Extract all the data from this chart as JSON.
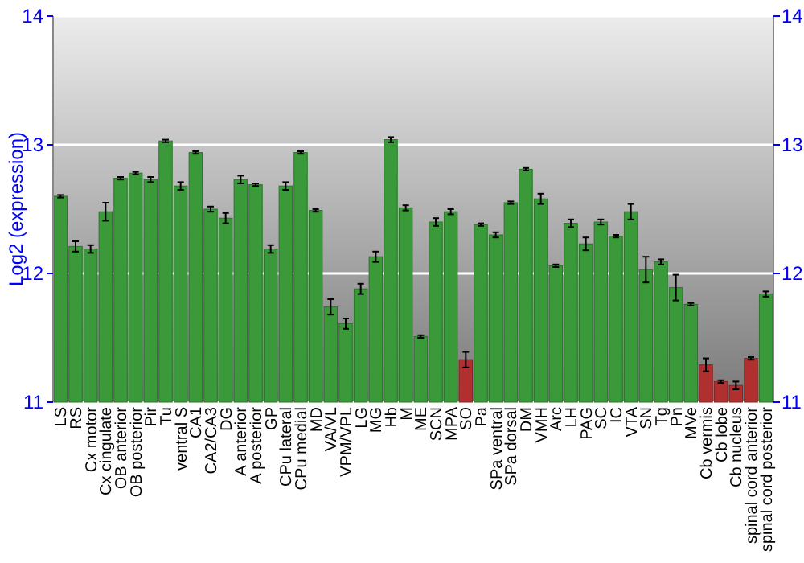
{
  "chart_data": {
    "type": "bar",
    "ylabel": "Log2 (expression)",
    "categories": [
      "LS",
      "RS",
      "Cx motor",
      "Cx cingulate",
      "OB anterior",
      "OB posterior",
      "Pir",
      "Tu",
      "ventral S",
      "CA1",
      "CA2/CA3",
      "DG",
      "A anterior",
      "A posterior",
      "GP",
      "CPu lateral",
      "CPu medial",
      "MD",
      "VA/VL",
      "VPM/VPL",
      "LG",
      "MG",
      "Hb",
      "M",
      "ME",
      "SCN",
      "MPA",
      "SO",
      "Pa",
      "SPa ventral",
      "SPa dorsal",
      "DM",
      "VMH",
      "Arc",
      "LH",
      "PAG",
      "SC",
      "IC",
      "VTA",
      "SN",
      "Tg",
      "Pn",
      "MVe",
      "Cb vermis",
      "Cb lobe",
      "Cb nucleus",
      "spinal cord anterior",
      "spinal cord posterior"
    ],
    "values": [
      12.6,
      12.21,
      12.19,
      12.48,
      12.74,
      12.78,
      12.73,
      13.03,
      12.68,
      12.94,
      12.5,
      12.43,
      12.73,
      12.69,
      12.19,
      12.68,
      12.94,
      12.49,
      11.74,
      11.61,
      11.88,
      12.13,
      13.04,
      12.51,
      11.51,
      12.4,
      12.48,
      11.33,
      12.38,
      12.3,
      12.55,
      12.81,
      12.58,
      12.06,
      12.39,
      12.23,
      12.4,
      12.29,
      12.48,
      12.03,
      12.09,
      11.89,
      11.76,
      11.29,
      11.16,
      11.13,
      11.34,
      11.84
    ],
    "errors": [
      0.01,
      0.04,
      0.03,
      0.07,
      0.01,
      0.01,
      0.02,
      0.01,
      0.03,
      0.01,
      0.02,
      0.04,
      0.03,
      0.01,
      0.03,
      0.03,
      0.01,
      0.01,
      0.06,
      0.04,
      0.04,
      0.04,
      0.02,
      0.02,
      0.01,
      0.03,
      0.02,
      0.06,
      0.01,
      0.02,
      0.01,
      0.01,
      0.04,
      0.01,
      0.03,
      0.05,
      0.02,
      0.01,
      0.06,
      0.1,
      0.02,
      0.1,
      0.01,
      0.05,
      0.01,
      0.03,
      0.01,
      0.02
    ],
    "colors": [
      "#3a9a3a",
      "#3a9a3a",
      "#3a9a3a",
      "#3a9a3a",
      "#3a9a3a",
      "#3a9a3a",
      "#3a9a3a",
      "#3a9a3a",
      "#3a9a3a",
      "#3a9a3a",
      "#3a9a3a",
      "#3a9a3a",
      "#3a9a3a",
      "#3a9a3a",
      "#3a9a3a",
      "#3a9a3a",
      "#3a9a3a",
      "#3a9a3a",
      "#3a9a3a",
      "#3a9a3a",
      "#3a9a3a",
      "#3a9a3a",
      "#3a9a3a",
      "#3a9a3a",
      "#3a9a3a",
      "#3a9a3a",
      "#3a9a3a",
      "#b03030",
      "#3a9a3a",
      "#3a9a3a",
      "#3a9a3a",
      "#3a9a3a",
      "#3a9a3a",
      "#3a9a3a",
      "#3a9a3a",
      "#3a9a3a",
      "#3a9a3a",
      "#3a9a3a",
      "#3a9a3a",
      "#3a9a3a",
      "#3a9a3a",
      "#3a9a3a",
      "#3a9a3a",
      "#b03030",
      "#b03030",
      "#b03030",
      "#b03030",
      "#3a9a3a"
    ],
    "ylim": [
      11,
      14
    ],
    "yticks": [
      11,
      12,
      13,
      14
    ],
    "y2lim": [
      11,
      14
    ],
    "y2ticks": [
      11,
      12,
      13,
      14
    ],
    "grid": "y"
  }
}
